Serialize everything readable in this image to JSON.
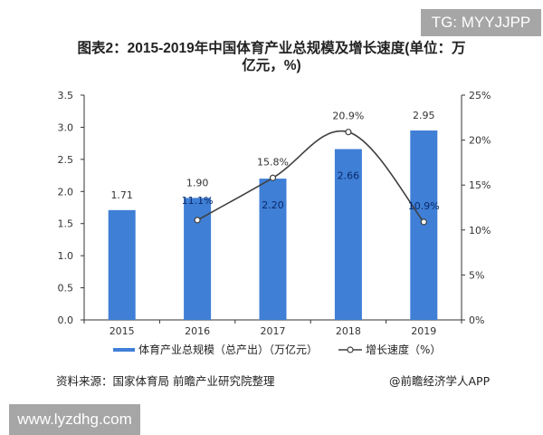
{
  "watermarks": {
    "top_right": "TG: MYYJJPP",
    "bottom_left": "www.lyzdhg.com"
  },
  "chart_data": {
    "type": "bar",
    "title": "图表2：2015-2019年中国体育产业总规模及增长速度(单位：万亿元，%)",
    "title_line1": "图表2：2015-2019年中国体育产业总规模及增长速度(单位：万",
    "title_line2": "亿元，%)",
    "categories": [
      "2015",
      "2016",
      "2017",
      "2018",
      "2019"
    ],
    "series": [
      {
        "name": "体育产业总规模（总产出）（万亿元）",
        "type": "bar",
        "axis": "left",
        "color": "#3f7fd6",
        "values": [
          1.71,
          1.9,
          2.2,
          2.66,
          2.95
        ],
        "labels": [
          "1.71",
          "1.90",
          "2.20",
          "2.66",
          "2.95"
        ]
      },
      {
        "name": "增长速度（%）",
        "type": "line",
        "axis": "right",
        "color": "#404040",
        "values": [
          null,
          11.1,
          15.8,
          20.9,
          10.9
        ],
        "labels": [
          "",
          "11.1%",
          "15.8%",
          "20.9%",
          "10.9%"
        ]
      }
    ],
    "left_axis": {
      "ylim": [
        0,
        3.5
      ],
      "ticks": [
        "0.0",
        "0.5",
        "1.0",
        "1.5",
        "2.0",
        "2.5",
        "3.0",
        "3.5"
      ]
    },
    "right_axis": {
      "ylim": [
        0,
        25
      ],
      "ticks": [
        "0%",
        "5%",
        "10%",
        "15%",
        "20%",
        "25%"
      ]
    },
    "xlabel": "",
    "ylabel": "",
    "grid": false,
    "legend_position": "bottom"
  },
  "legend": {
    "bar_label": "体育产业总规模（总产出）（万亿元）",
    "line_label": "增长速度（%）"
  },
  "footer": {
    "source": "资料来源：国家体育局 前瞻产业研究院整理",
    "app": "@前瞻经济学人APP"
  }
}
